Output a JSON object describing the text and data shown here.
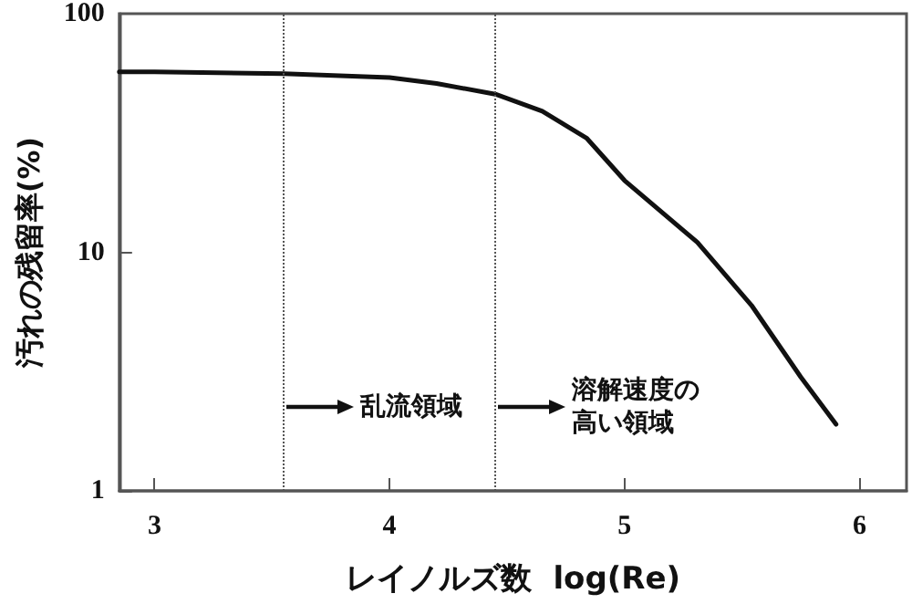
{
  "chart_data": {
    "type": "line",
    "xlabel": "レイノルズ数  log(Re)",
    "ylabel": "汚れの残留率(%)",
    "x": [
      2.85,
      3,
      3.55,
      4,
      4.2,
      4.45,
      4.65,
      4.84,
      5,
      5.31,
      5.54,
      5.75,
      5.9
    ],
    "series": [
      {
        "color": "#111111",
        "values": [
          57,
          57,
          56,
          54,
          51,
          46,
          39,
          30,
          20,
          11,
          6,
          3,
          1.9
        ]
      }
    ],
    "xlim": [
      2.85,
      6.2
    ],
    "xticks": [
      3,
      4,
      5,
      6
    ],
    "ylim": [
      1,
      100
    ],
    "yticks": [
      1,
      10,
      100
    ],
    "log": "y",
    "grid": false,
    "marker": "none",
    "line_style": "solid",
    "ref_lines": [
      {
        "axis": "x",
        "value": 3.55,
        "line_style": "dotted",
        "color": "#555555"
      },
      {
        "axis": "x",
        "value": 4.45,
        "line_style": "dotted",
        "color": "#555555"
      }
    ],
    "annotations": [
      "乱流領域",
      "溶解速度の高い領域"
    ]
  }
}
